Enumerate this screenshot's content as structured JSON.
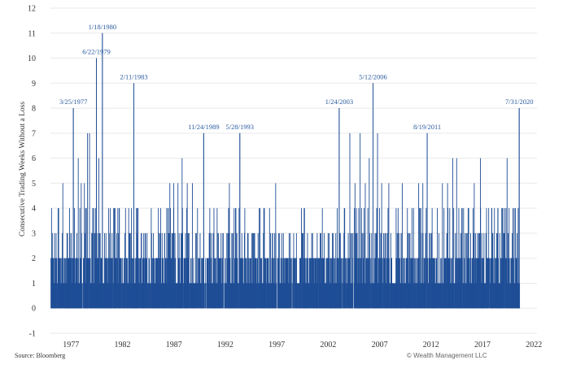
{
  "chart_data": {
    "type": "bar",
    "ylabel": "Consecutive Trading Weeks Without a Loss",
    "ylim": [
      -1,
      12
    ],
    "yticks": [
      -1,
      0,
      1,
      2,
      3,
      4,
      5,
      6,
      7,
      8,
      9,
      10,
      11,
      12
    ],
    "xlim": [
      1975.0,
      2022.3
    ],
    "xticks": [
      1977,
      1982,
      1987,
      1992,
      1997,
      2002,
      2007,
      2012,
      2017,
      2022
    ],
    "bar_color": "#1f4e96",
    "grid": true,
    "annotations": [
      {
        "label": "3/25/1977",
        "x": 1977.23,
        "y": 8
      },
      {
        "label": "6/22/1979",
        "x": 1979.47,
        "y": 10
      },
      {
        "label": "1/18/1980",
        "x": 1980.05,
        "y": 11
      },
      {
        "label": "2/11/1983",
        "x": 1983.11,
        "y": 9
      },
      {
        "label": "11/24/1989",
        "x": 1989.9,
        "y": 7
      },
      {
        "label": "5/28/1993",
        "x": 1993.41,
        "y": 7
      },
      {
        "label": "1/24/2003",
        "x": 2003.07,
        "y": 8
      },
      {
        "label": "5/12/2006",
        "x": 2006.36,
        "y": 9
      },
      {
        "label": "8/19/2011",
        "x": 2011.63,
        "y": 7
      },
      {
        "label": "7/31/2020",
        "x": 2020.58,
        "y": 8
      }
    ],
    "peaks": [
      {
        "x": 1975.4,
        "y": 3
      },
      {
        "x": 1975.8,
        "y": 4
      },
      {
        "x": 1976.2,
        "y": 5
      },
      {
        "x": 1976.6,
        "y": 3
      },
      {
        "x": 1976.9,
        "y": 3
      },
      {
        "x": 1977.23,
        "y": 8
      },
      {
        "x": 1977.7,
        "y": 6
      },
      {
        "x": 1978.0,
        "y": 5
      },
      {
        "x": 1978.3,
        "y": 5
      },
      {
        "x": 1978.6,
        "y": 7
      },
      {
        "x": 1978.8,
        "y": 7
      },
      {
        "x": 1979.1,
        "y": 4
      },
      {
        "x": 1979.47,
        "y": 10
      },
      {
        "x": 1979.7,
        "y": 6
      },
      {
        "x": 1980.05,
        "y": 11
      },
      {
        "x": 1980.4,
        "y": 3
      },
      {
        "x": 1981.0,
        "y": 3
      },
      {
        "x": 1981.7,
        "y": 4
      },
      {
        "x": 1982.3,
        "y": 4
      },
      {
        "x": 1982.6,
        "y": 4
      },
      {
        "x": 1983.11,
        "y": 9
      },
      {
        "x": 1983.4,
        "y": 4
      },
      {
        "x": 1984.2,
        "y": 3
      },
      {
        "x": 1984.8,
        "y": 4
      },
      {
        "x": 1985.5,
        "y": 4
      },
      {
        "x": 1986.1,
        "y": 3
      },
      {
        "x": 1986.6,
        "y": 5
      },
      {
        "x": 1987.0,
        "y": 5
      },
      {
        "x": 1987.4,
        "y": 5
      },
      {
        "x": 1987.8,
        "y": 6
      },
      {
        "x": 1988.3,
        "y": 5
      },
      {
        "x": 1988.8,
        "y": 5
      },
      {
        "x": 1989.3,
        "y": 4
      },
      {
        "x": 1989.9,
        "y": 7
      },
      {
        "x": 1990.5,
        "y": 4
      },
      {
        "x": 1991.2,
        "y": 4
      },
      {
        "x": 1991.8,
        "y": 3
      },
      {
        "x": 1992.4,
        "y": 5
      },
      {
        "x": 1993.0,
        "y": 4
      },
      {
        "x": 1993.41,
        "y": 7
      },
      {
        "x": 1993.9,
        "y": 4
      },
      {
        "x": 1994.7,
        "y": 3
      },
      {
        "x": 1995.3,
        "y": 4
      },
      {
        "x": 1995.8,
        "y": 4
      },
      {
        "x": 1996.4,
        "y": 3
      },
      {
        "x": 1996.9,
        "y": 5
      },
      {
        "x": 1997.5,
        "y": 3
      },
      {
        "x": 1998.2,
        "y": 3
      },
      {
        "x": 1998.8,
        "y": 2
      },
      {
        "x": 1999.4,
        "y": 4
      },
      {
        "x": 2000.0,
        "y": 3
      },
      {
        "x": 2000.5,
        "y": 3
      },
      {
        "x": 2001.3,
        "y": 3
      },
      {
        "x": 2002.0,
        "y": 3
      },
      {
        "x": 2002.5,
        "y": 3
      },
      {
        "x": 2003.07,
        "y": 8
      },
      {
        "x": 2003.6,
        "y": 4
      },
      {
        "x": 2004.1,
        "y": 7
      },
      {
        "x": 2004.6,
        "y": 5
      },
      {
        "x": 2005.1,
        "y": 7
      },
      {
        "x": 2005.6,
        "y": 5
      },
      {
        "x": 2006.0,
        "y": 6
      },
      {
        "x": 2006.36,
        "y": 9
      },
      {
        "x": 2006.8,
        "y": 7
      },
      {
        "x": 2007.2,
        "y": 5
      },
      {
        "x": 2007.9,
        "y": 5
      },
      {
        "x": 2008.6,
        "y": 4
      },
      {
        "x": 2009.2,
        "y": 5
      },
      {
        "x": 2009.7,
        "y": 4
      },
      {
        "x": 2010.3,
        "y": 4
      },
      {
        "x": 2010.8,
        "y": 5
      },
      {
        "x": 2011.2,
        "y": 5
      },
      {
        "x": 2011.63,
        "y": 7
      },
      {
        "x": 2012.1,
        "y": 4
      },
      {
        "x": 2012.6,
        "y": 4
      },
      {
        "x": 2013.1,
        "y": 5
      },
      {
        "x": 2013.6,
        "y": 5
      },
      {
        "x": 2014.1,
        "y": 6
      },
      {
        "x": 2014.5,
        "y": 6
      },
      {
        "x": 2015.0,
        "y": 4
      },
      {
        "x": 2015.6,
        "y": 4
      },
      {
        "x": 2016.2,
        "y": 5
      },
      {
        "x": 2016.8,
        "y": 6
      },
      {
        "x": 2017.4,
        "y": 4
      },
      {
        "x": 2017.9,
        "y": 4
      },
      {
        "x": 2018.5,
        "y": 4
      },
      {
        "x": 2019.0,
        "y": 4
      },
      {
        "x": 2019.4,
        "y": 6
      },
      {
        "x": 2019.9,
        "y": 3
      },
      {
        "x": 2020.58,
        "y": 8
      }
    ],
    "series_range": [
      1975.05,
      2020.62
    ],
    "source": "Source: Bloomberg",
    "credit": "© Wealth Management LLC"
  }
}
